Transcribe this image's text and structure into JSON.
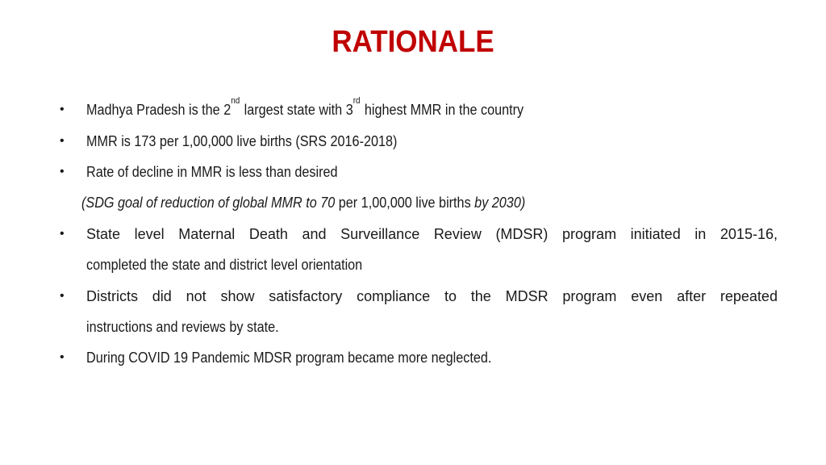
{
  "slide": {
    "title": "RATIONALE",
    "bullet_char": "•",
    "b1": {
      "part1": "Madhya Pradesh is the 2",
      "sup1": "nd",
      "part2": "largest state with 3",
      "sup2": "rd",
      "part3": "highest MMR in the country"
    },
    "b2": "MMR is 173 per 1,00,000 live births (SRS 2016-2018)",
    "b3": "Rate of decline in MMR is less than desired",
    "note": {
      "italic1": "(SDG goal of reduction of global MMR to 70",
      "normal": "per 1,00,000 live births",
      "italic2": "by 2030)"
    },
    "b4_line1_words": [
      "State",
      "level",
      "Maternal",
      "Death",
      "and",
      "Surveillance",
      "Review",
      "(MDSR)",
      "program",
      "initiated",
      "in",
      "2015-16,"
    ],
    "b4_line2": "completed the state and district level orientation",
    "b5_line1_words": [
      "Districts",
      "did",
      "not",
      "show",
      "satisfactory",
      "compliance",
      "to",
      "the",
      "MDSR",
      "program",
      "even",
      "after",
      "repeated"
    ],
    "b5_line2": "instructions and reviews by state.",
    "b6": "During COVID 19 Pandemic MDSR program became more neglected."
  }
}
